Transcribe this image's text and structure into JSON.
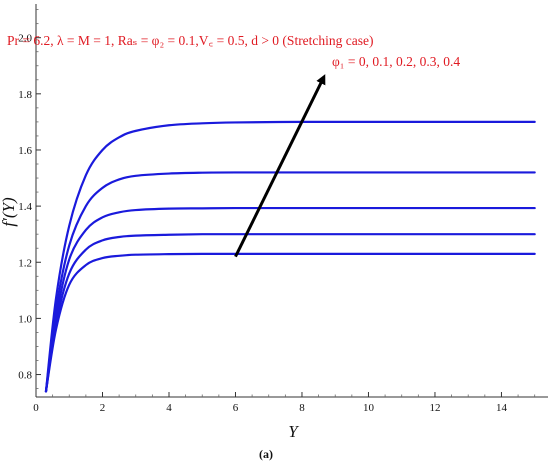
{
  "chart_data": {
    "type": "line",
    "xlabel": "Y",
    "ylabel": "f′(Y)",
    "xlim": [
      0,
      15.4
    ],
    "ylim": [
      0.72,
      2.12
    ],
    "xticks": [
      0,
      2,
      4,
      6,
      8,
      10,
      12,
      14
    ],
    "yticks": [
      0.8,
      1.0,
      1.2,
      1.4,
      1.6,
      1.8,
      2.0
    ],
    "xticklabels": [
      "0",
      "2",
      "4",
      "6",
      "8",
      "10",
      "12",
      "14"
    ],
    "yticklabels": [
      "0.8",
      "1.0",
      "1.2",
      "1.4",
      "1.6",
      "1.8",
      "2.0"
    ],
    "grid": false,
    "line_color": "#1a1adc",
    "series": [
      {
        "x": [
          0.3,
          0.6,
          1.0,
          1.5,
          2.0,
          2.5,
          3.0,
          4.0,
          5.0,
          6.0,
          8.0,
          10.0,
          12.0,
          15.0
        ],
        "values": [
          0.74,
          0.96,
          1.12,
          1.19,
          1.215,
          1.223,
          1.227,
          1.229,
          1.23,
          1.23,
          1.23,
          1.23,
          1.23,
          1.23
        ]
      },
      {
        "x": [
          0.3,
          0.6,
          1.0,
          1.5,
          2.0,
          2.5,
          3.0,
          4.0,
          5.0,
          6.0,
          8.0,
          10.0,
          12.0,
          15.0
        ],
        "values": [
          0.74,
          0.98,
          1.16,
          1.245,
          1.278,
          1.29,
          1.295,
          1.298,
          1.3,
          1.3,
          1.3,
          1.3,
          1.3,
          1.3
        ]
      },
      {
        "x": [
          0.3,
          0.6,
          1.0,
          1.5,
          2.0,
          2.5,
          3.0,
          4.0,
          5.0,
          6.0,
          8.0,
          10.0,
          12.0,
          15.0
        ],
        "values": [
          0.74,
          1.0,
          1.21,
          1.315,
          1.36,
          1.378,
          1.386,
          1.391,
          1.392,
          1.393,
          1.393,
          1.393,
          1.393,
          1.393
        ]
      },
      {
        "x": [
          0.3,
          0.6,
          1.0,
          1.5,
          2.0,
          2.5,
          3.0,
          4.0,
          5.0,
          6.0,
          8.0,
          10.0,
          12.0,
          15.0
        ],
        "values": [
          0.74,
          1.03,
          1.26,
          1.4,
          1.465,
          1.495,
          1.508,
          1.516,
          1.519,
          1.52,
          1.52,
          1.52,
          1.52,
          1.52
        ]
      },
      {
        "x": [
          0.3,
          0.6,
          1.0,
          1.5,
          2.0,
          2.5,
          3.0,
          4.0,
          5.0,
          6.0,
          8.0,
          10.0,
          12.0,
          15.0
        ],
        "values": [
          0.74,
          1.07,
          1.33,
          1.51,
          1.6,
          1.645,
          1.668,
          1.688,
          1.695,
          1.698,
          1.7,
          1.7,
          1.7,
          1.7
        ]
      }
    ],
    "annotations": {
      "params_text": "Pr = 6.2,  λ = M = 1, Raₛ = φ₂ = 0.1,V꜀ = 0.5, d > 0 (Stretching case)",
      "phi_text": "φ₁ = 0, 0.1, 0.2, 0.3, 0.4",
      "arrow": {
        "from": [
          6.0,
          1.22
        ],
        "to": [
          8.7,
          1.87
        ]
      }
    },
    "caption": "(a)"
  }
}
